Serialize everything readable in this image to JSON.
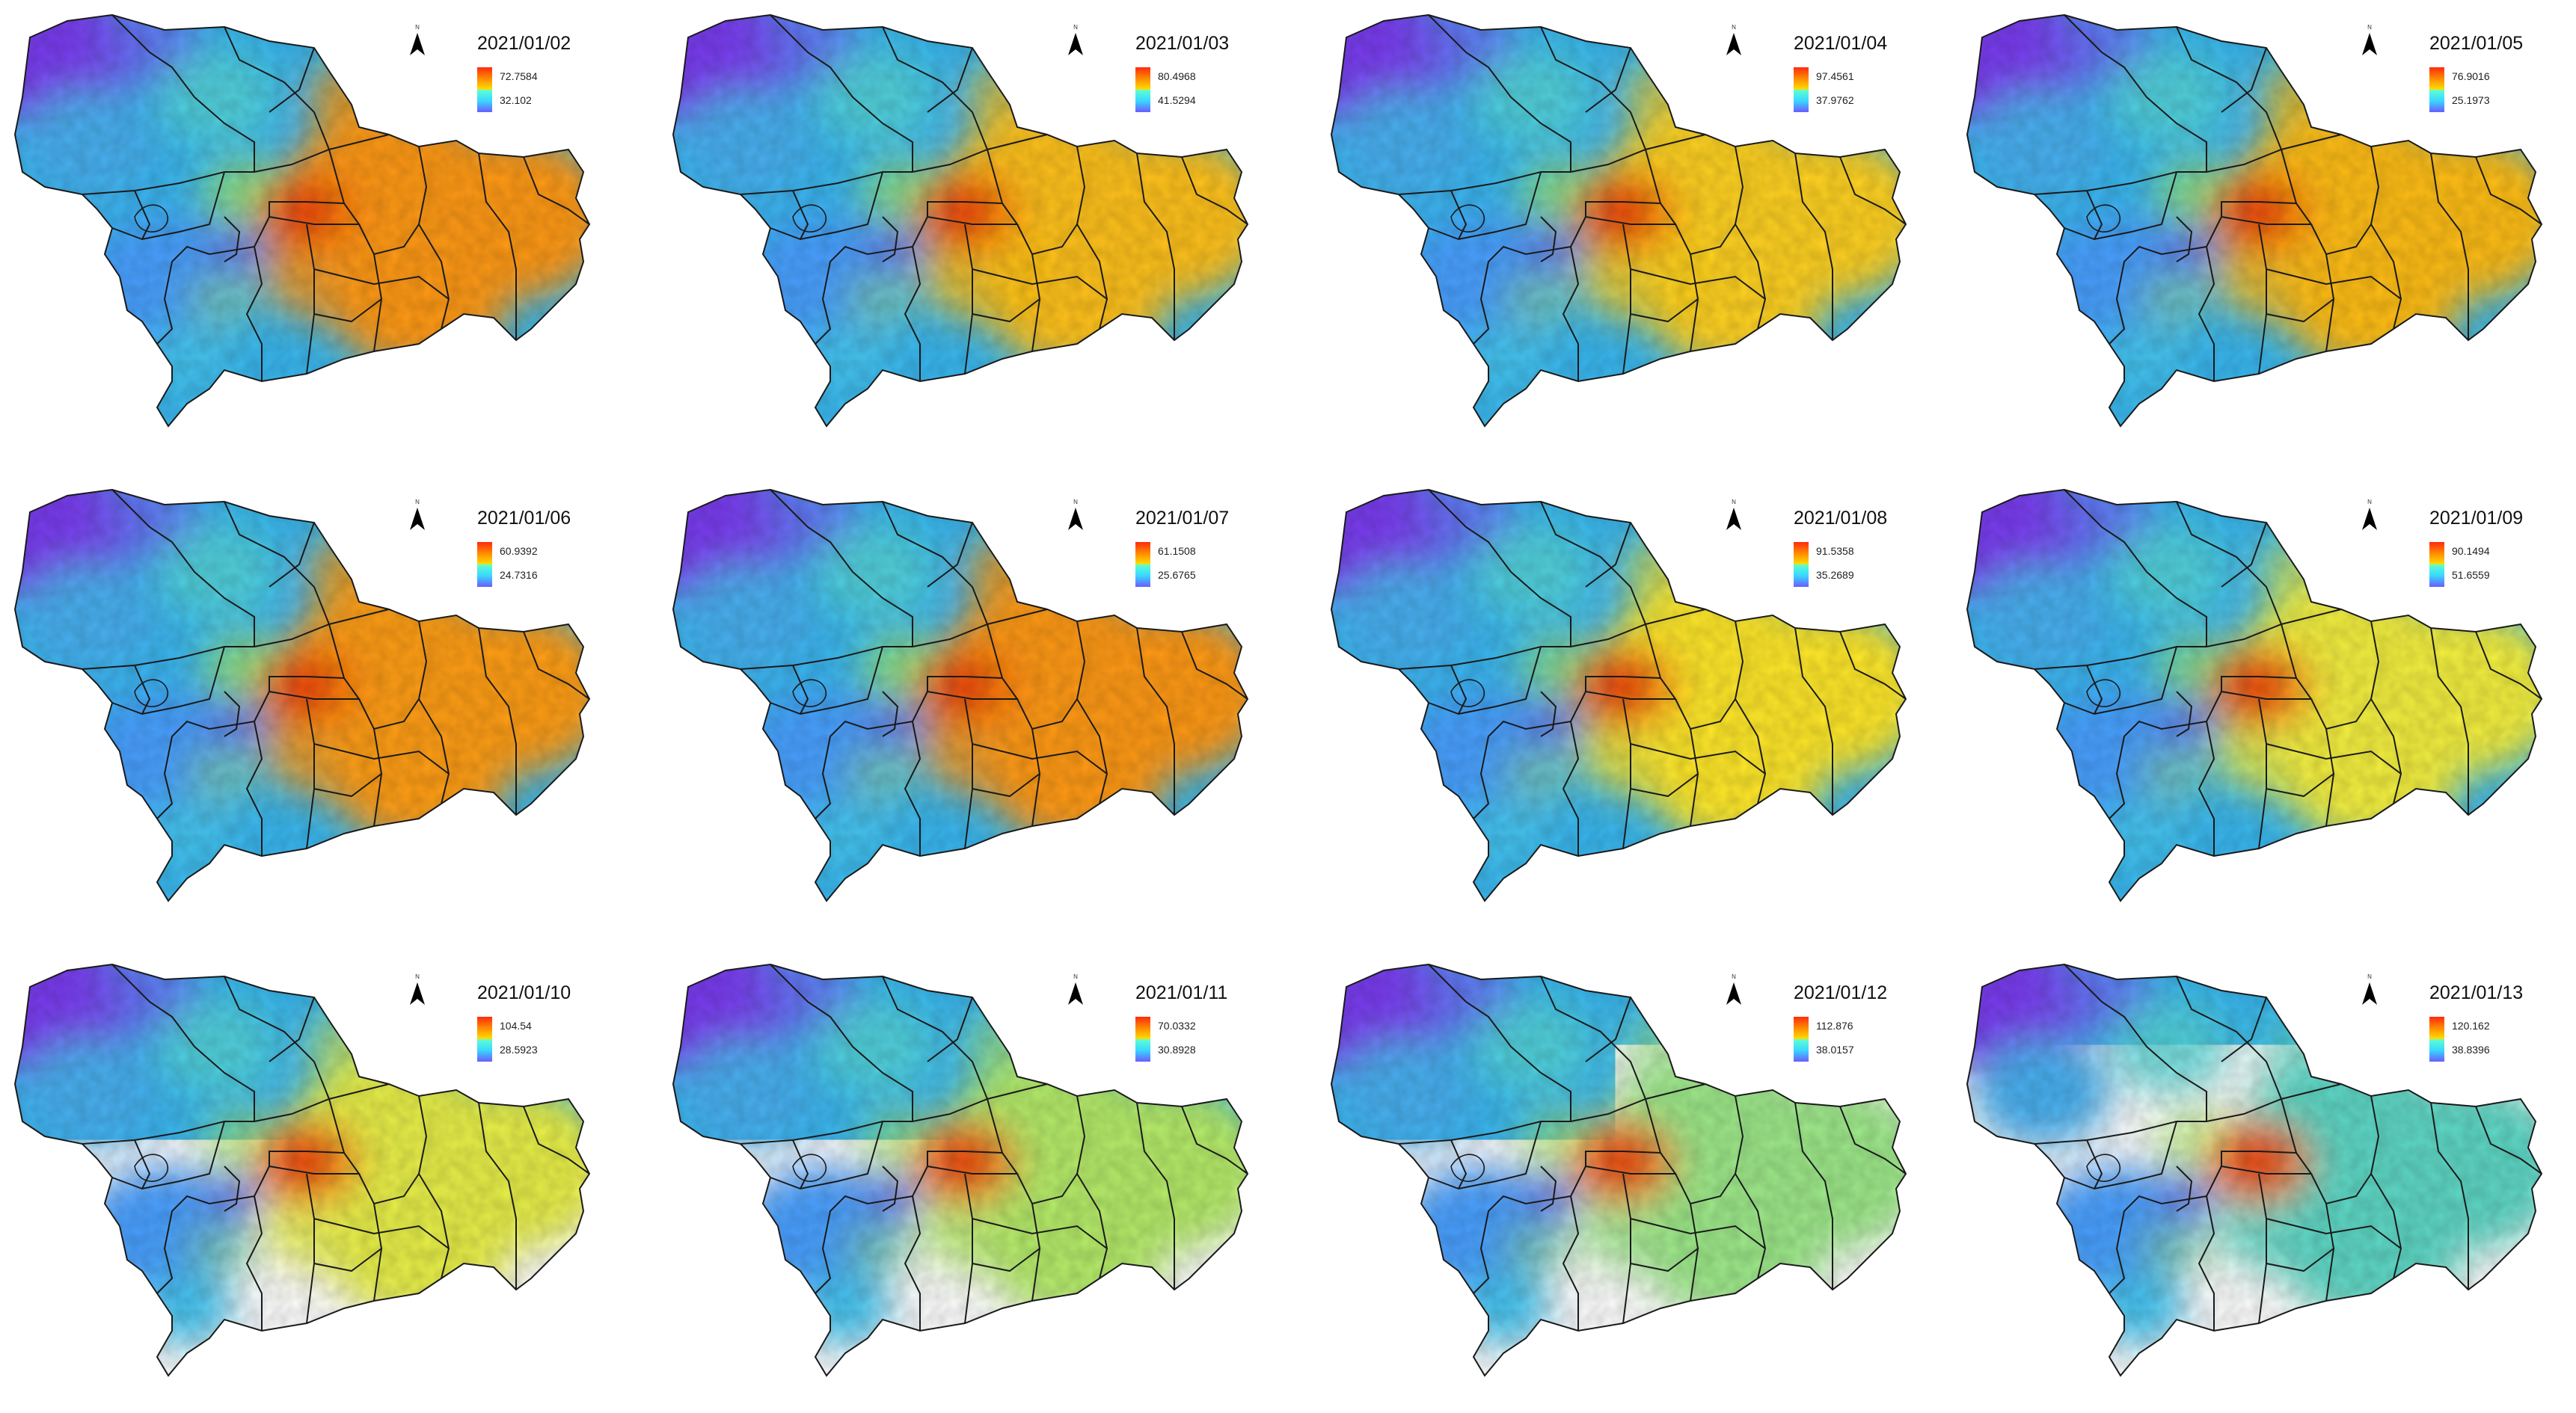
{
  "panels": [
    {
      "date": "2021/01/02",
      "max": "72.7584",
      "min": "32.102",
      "hot": 0.75,
      "east": "#ff9a14",
      "core": "#e8220e"
    },
    {
      "date": "2021/01/03",
      "max": "80.4968",
      "min": "41.5294",
      "hot": 0.55,
      "east": "#ffc21a",
      "core": "#e8240e"
    },
    {
      "date": "2021/01/04",
      "max": "97.4561",
      "min": "37.9762",
      "hot": 0.55,
      "east": "#ffd220",
      "core": "#e4200c"
    },
    {
      "date": "2021/01/05",
      "max": "76.9016",
      "min": "25.1973",
      "hot": 0.6,
      "east": "#ffbe16",
      "core": "#e4200c"
    },
    {
      "date": "2021/01/06",
      "max": "60.9392",
      "min": "24.7316",
      "hot": 0.75,
      "east": "#ff9e14",
      "core": "#e8240e"
    },
    {
      "date": "2021/01/07",
      "max": "61.1508",
      "min": "25.6765",
      "hot": 0.75,
      "east": "#ff9a14",
      "core": "#e4200c"
    },
    {
      "date": "2021/01/08",
      "max": "91.5358",
      "min": "35.2689",
      "hot": 0.45,
      "east": "#ffe82a",
      "core": "#e4200c"
    },
    {
      "date": "2021/01/09",
      "max": "90.1494",
      "min": "51.6559",
      "hot": 0.4,
      "east": "#f4f040",
      "core": "#e42a10"
    },
    {
      "date": "2021/01/10",
      "max": "104.54",
      "min": "28.5923",
      "hot": 0.35,
      "east": "#e8f04a",
      "core": "#e4200c"
    },
    {
      "date": "2021/01/11",
      "max": "70.0332",
      "min": "30.8928",
      "hot": 0.3,
      "east": "#b6ec6a",
      "core": "#e4200c"
    },
    {
      "date": "2021/01/12",
      "max": "112.876",
      "min": "38.0157",
      "hot": 0.3,
      "east": "#9ee98a",
      "core": "#e4200c"
    },
    {
      "date": "2021/01/13",
      "max": "120.162",
      "min": "38.8396",
      "hot": 0.25,
      "east": "#5ed8c6",
      "core": "#e4200c"
    }
  ],
  "colors": {
    "northwest": "#7a3df0",
    "north": "#3ab8f0",
    "west": "#40c8e8",
    "southwest": "#4aa0ff",
    "ridge": "#a8f060",
    "lake": "#7040e0"
  },
  "icons": {
    "north_arrow": "north-arrow-icon"
  }
}
